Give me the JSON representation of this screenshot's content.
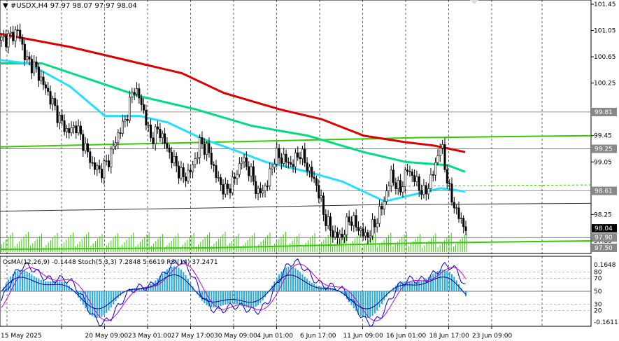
{
  "header": {
    "symbol": "#USDX,H4",
    "ohlc": "97.97 98.07 97.97 98.04"
  },
  "indicator_header": "OsMA(12,26,9) -0.1448  Stoch(5,3,3) 7.2848 5.6619  RSI(14) 37.2471",
  "colors": {
    "candle": "#000000",
    "ma_red": "#dd0000",
    "ma_green_a": "#00dd80",
    "ma_cyan": "#22e0ff",
    "ma_green_long": "#33cc00",
    "volume": "#33cc00",
    "hist": "#22aadd",
    "stoch": "#0000cc",
    "rsi": "#cc00cc"
  },
  "chart_data": {
    "type": "candlestick",
    "ylim": [
      97.7,
      101.45
    ],
    "price_ticks": [
      "101.45",
      "101.05",
      "100.65",
      "100.25",
      "99.45",
      "99.05",
      "98.25",
      "97.85"
    ],
    "level_tags": [
      {
        "label": "99.81",
        "value": 99.81,
        "bg": "#888888",
        "fg": "#ffffff"
      },
      {
        "label": "99.25",
        "value": 99.25,
        "bg": "#888888",
        "fg": "#ffffff"
      },
      {
        "label": "98.61",
        "value": 98.61,
        "bg": "#888888",
        "fg": "#ffffff"
      },
      {
        "label": "98.04",
        "value": 98.04,
        "bg": "#000000",
        "fg": "#ffffff"
      },
      {
        "label": "97.90",
        "value": 97.9,
        "bg": "#888888",
        "fg": "#ffffff"
      },
      {
        "label": "97.50",
        "value": 97.5,
        "bg": "#888888",
        "fg": "#ffffff"
      }
    ],
    "horizontal_levels": [
      99.81,
      99.25,
      98.61,
      97.9
    ],
    "time_labels": [
      "15 May 2025",
      "20 May 09:00",
      "23 May 01:00",
      "27 May 17:00",
      "30 May 09:00",
      "4 Jun 01:00",
      "6 Jun 17:00",
      "11 Jun 09:00",
      "16 Jun 01:00",
      "18 Jun 17:00",
      "23 Jun 09:00"
    ],
    "close_path": [
      100.9,
      100.95,
      101.05,
      100.6,
      100.5,
      100.25,
      100.0,
      99.7,
      99.5,
      99.6,
      99.3,
      99.0,
      98.9,
      99.1,
      99.45,
      99.7,
      100.2,
      99.9,
      99.4,
      99.55,
      99.25,
      99.0,
      98.8,
      98.95,
      99.35,
      99.2,
      98.8,
      98.6,
      98.75,
      99.1,
      98.9,
      98.55,
      98.7,
      99.15,
      99.1,
      99.0,
      99.2,
      98.95,
      98.7,
      98.2,
      97.95,
      97.9,
      98.2,
      98.05,
      97.9,
      98.1,
      98.4,
      98.85,
      98.6,
      98.95,
      98.75,
      98.55,
      98.85,
      99.35,
      98.6,
      98.25,
      98.04
    ],
    "ma_red": [
      [
        0,
        101.0
      ],
      [
        100,
        100.8
      ],
      [
        200,
        100.55
      ],
      [
        260,
        100.4
      ],
      [
        320,
        100.1
      ],
      [
        400,
        99.85
      ],
      [
        460,
        99.7
      ],
      [
        520,
        99.45
      ],
      [
        580,
        99.35
      ],
      [
        620,
        99.3
      ],
      [
        665,
        99.2
      ]
    ],
    "ma_green_a": [
      [
        0,
        100.55
      ],
      [
        60,
        100.55
      ],
      [
        130,
        100.3
      ],
      [
        200,
        100.05
      ],
      [
        280,
        99.85
      ],
      [
        360,
        99.6
      ],
      [
        440,
        99.45
      ],
      [
        520,
        99.2
      ],
      [
        580,
        99.05
      ],
      [
        640,
        99.0
      ],
      [
        665,
        98.9
      ]
    ],
    "ma_cyan": [
      [
        0,
        100.6
      ],
      [
        40,
        100.55
      ],
      [
        100,
        100.2
      ],
      [
        150,
        99.75
      ],
      [
        200,
        99.75
      ],
      [
        240,
        99.65
      ],
      [
        290,
        99.4
      ],
      [
        330,
        99.25
      ],
      [
        380,
        99.05
      ],
      [
        440,
        98.9
      ],
      [
        490,
        98.75
      ],
      [
        550,
        98.45
      ],
      [
        590,
        98.55
      ],
      [
        630,
        98.65
      ],
      [
        665,
        98.6
      ]
    ],
    "ma_green_long": [
      [
        0,
        99.28
      ],
      [
        300,
        99.35
      ],
      [
        600,
        99.42
      ],
      [
        845,
        99.45
      ]
    ],
    "ma_gray": [
      [
        0,
        98.3
      ],
      [
        300,
        98.35
      ],
      [
        540,
        98.4
      ],
      [
        845,
        98.42
      ]
    ],
    "volume": {
      "line_y": 0.25
    },
    "indicator": {
      "ylim": [
        0,
        100
      ],
      "right_labels": [
        "0.1648",
        "80",
        "70",
        "50",
        "30",
        "20",
        "-0.1611"
      ],
      "levels": [
        80,
        70,
        50,
        30,
        20
      ]
    }
  }
}
